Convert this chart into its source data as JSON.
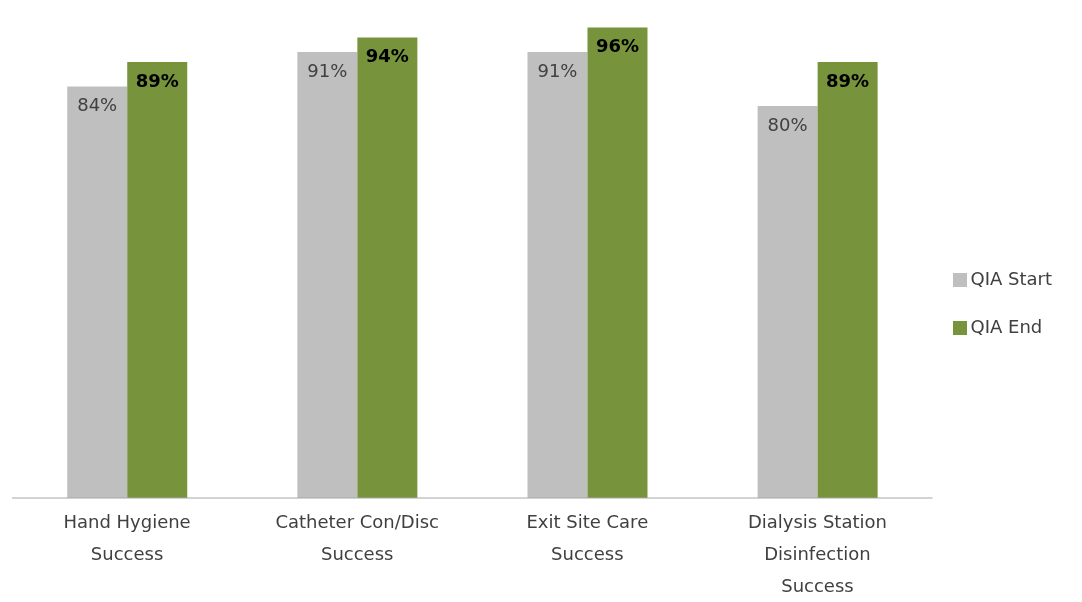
{
  "chart_data": {
    "type": "bar",
    "categories": [
      "Hand Hygiene Success",
      "Catheter Con/Disc Success",
      "Exit Site Care Success",
      "Dialysis Station Disinfection Success"
    ],
    "series": [
      {
        "name": "QIA Start",
        "color": "#bfbfbf",
        "values": [
          84,
          91,
          91,
          80
        ],
        "value_labels": [
          "84%",
          "91%",
          "91%",
          "80%"
        ]
      },
      {
        "name": "QIA End",
        "color": "#77933c",
        "values": [
          89,
          94,
          96,
          89
        ],
        "value_labels": [
          "89%",
          "94%",
          "96%",
          "89%"
        ]
      }
    ],
    "legend": "right"
  }
}
